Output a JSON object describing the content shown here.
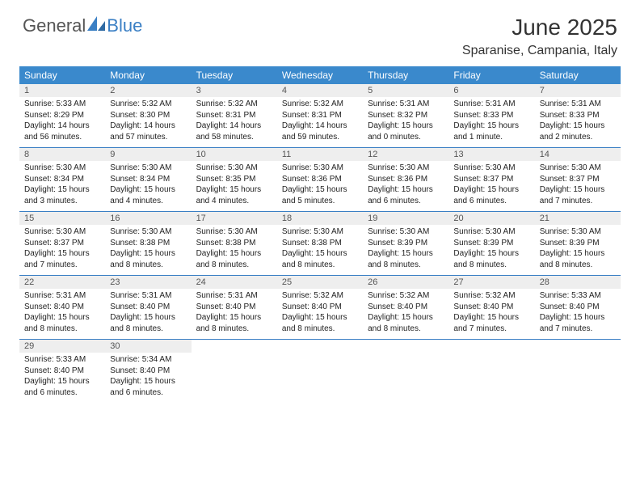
{
  "brand": {
    "part1": "General",
    "part2": "Blue",
    "text_color": "#555555",
    "accent_color": "#3a7fc4"
  },
  "title": "June 2025",
  "location": "Sparanise, Campania, Italy",
  "header_bg": "#3a89cc",
  "header_fg": "#ffffff",
  "daynum_bg": "#eeeeee",
  "rule_color": "#3a7fc4",
  "day_headers": [
    "Sunday",
    "Monday",
    "Tuesday",
    "Wednesday",
    "Thursday",
    "Friday",
    "Saturday"
  ],
  "columns": 7,
  "weeks": [
    [
      {
        "n": "1",
        "sunrise": "5:33 AM",
        "sunset": "8:29 PM",
        "dl": "14 hours and 56 minutes."
      },
      {
        "n": "2",
        "sunrise": "5:32 AM",
        "sunset": "8:30 PM",
        "dl": "14 hours and 57 minutes."
      },
      {
        "n": "3",
        "sunrise": "5:32 AM",
        "sunset": "8:31 PM",
        "dl": "14 hours and 58 minutes."
      },
      {
        "n": "4",
        "sunrise": "5:32 AM",
        "sunset": "8:31 PM",
        "dl": "14 hours and 59 minutes."
      },
      {
        "n": "5",
        "sunrise": "5:31 AM",
        "sunset": "8:32 PM",
        "dl": "15 hours and 0 minutes."
      },
      {
        "n": "6",
        "sunrise": "5:31 AM",
        "sunset": "8:33 PM",
        "dl": "15 hours and 1 minute."
      },
      {
        "n": "7",
        "sunrise": "5:31 AM",
        "sunset": "8:33 PM",
        "dl": "15 hours and 2 minutes."
      }
    ],
    [
      {
        "n": "8",
        "sunrise": "5:30 AM",
        "sunset": "8:34 PM",
        "dl": "15 hours and 3 minutes."
      },
      {
        "n": "9",
        "sunrise": "5:30 AM",
        "sunset": "8:34 PM",
        "dl": "15 hours and 4 minutes."
      },
      {
        "n": "10",
        "sunrise": "5:30 AM",
        "sunset": "8:35 PM",
        "dl": "15 hours and 4 minutes."
      },
      {
        "n": "11",
        "sunrise": "5:30 AM",
        "sunset": "8:36 PM",
        "dl": "15 hours and 5 minutes."
      },
      {
        "n": "12",
        "sunrise": "5:30 AM",
        "sunset": "8:36 PM",
        "dl": "15 hours and 6 minutes."
      },
      {
        "n": "13",
        "sunrise": "5:30 AM",
        "sunset": "8:37 PM",
        "dl": "15 hours and 6 minutes."
      },
      {
        "n": "14",
        "sunrise": "5:30 AM",
        "sunset": "8:37 PM",
        "dl": "15 hours and 7 minutes."
      }
    ],
    [
      {
        "n": "15",
        "sunrise": "5:30 AM",
        "sunset": "8:37 PM",
        "dl": "15 hours and 7 minutes."
      },
      {
        "n": "16",
        "sunrise": "5:30 AM",
        "sunset": "8:38 PM",
        "dl": "15 hours and 8 minutes."
      },
      {
        "n": "17",
        "sunrise": "5:30 AM",
        "sunset": "8:38 PM",
        "dl": "15 hours and 8 minutes."
      },
      {
        "n": "18",
        "sunrise": "5:30 AM",
        "sunset": "8:38 PM",
        "dl": "15 hours and 8 minutes."
      },
      {
        "n": "19",
        "sunrise": "5:30 AM",
        "sunset": "8:39 PM",
        "dl": "15 hours and 8 minutes."
      },
      {
        "n": "20",
        "sunrise": "5:30 AM",
        "sunset": "8:39 PM",
        "dl": "15 hours and 8 minutes."
      },
      {
        "n": "21",
        "sunrise": "5:30 AM",
        "sunset": "8:39 PM",
        "dl": "15 hours and 8 minutes."
      }
    ],
    [
      {
        "n": "22",
        "sunrise": "5:31 AM",
        "sunset": "8:40 PM",
        "dl": "15 hours and 8 minutes."
      },
      {
        "n": "23",
        "sunrise": "5:31 AM",
        "sunset": "8:40 PM",
        "dl": "15 hours and 8 minutes."
      },
      {
        "n": "24",
        "sunrise": "5:31 AM",
        "sunset": "8:40 PM",
        "dl": "15 hours and 8 minutes."
      },
      {
        "n": "25",
        "sunrise": "5:32 AM",
        "sunset": "8:40 PM",
        "dl": "15 hours and 8 minutes."
      },
      {
        "n": "26",
        "sunrise": "5:32 AM",
        "sunset": "8:40 PM",
        "dl": "15 hours and 8 minutes."
      },
      {
        "n": "27",
        "sunrise": "5:32 AM",
        "sunset": "8:40 PM",
        "dl": "15 hours and 7 minutes."
      },
      {
        "n": "28",
        "sunrise": "5:33 AM",
        "sunset": "8:40 PM",
        "dl": "15 hours and 7 minutes."
      }
    ],
    [
      {
        "n": "29",
        "sunrise": "5:33 AM",
        "sunset": "8:40 PM",
        "dl": "15 hours and 6 minutes."
      },
      {
        "n": "30",
        "sunrise": "5:34 AM",
        "sunset": "8:40 PM",
        "dl": "15 hours and 6 minutes."
      },
      null,
      null,
      null,
      null,
      null
    ]
  ],
  "labels": {
    "sunrise": "Sunrise:",
    "sunset": "Sunset:",
    "daylight": "Daylight:"
  }
}
